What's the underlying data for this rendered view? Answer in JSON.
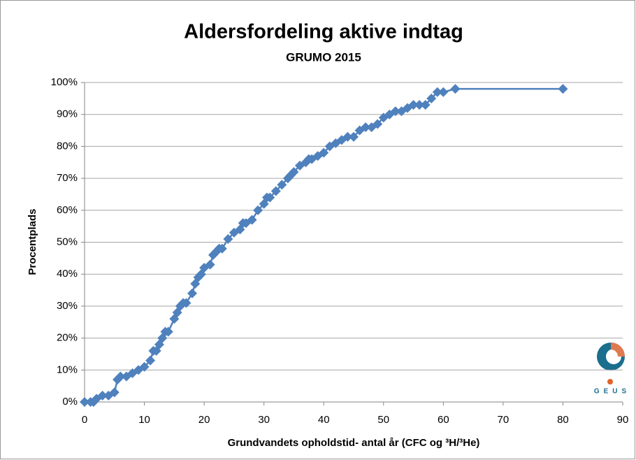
{
  "chart_data": {
    "type": "line",
    "title": "Aldersfordeling aktive indtag",
    "subtitle": "GRUMO 2015",
    "xlabel": "Grundvandets opholdstid- antal år (CFC og ³H/³He)",
    "ylabel": "Procentplads",
    "logo": "GEUS",
    "color": "#4f81bd",
    "marker": "diamond",
    "grid": true,
    "x": [
      0,
      1,
      1.5,
      2,
      3,
      4,
      5,
      5.5,
      6,
      7,
      8,
      9,
      10,
      11,
      11.5,
      12,
      12.5,
      13,
      13.5,
      14,
      15,
      15.5,
      16,
      16.5,
      17,
      18,
      18.5,
      19,
      19.5,
      20,
      21,
      21.5,
      22,
      22.5,
      23,
      24,
      25,
      26,
      26.5,
      27,
      28,
      29,
      30,
      30.5,
      31,
      32,
      33,
      34,
      34.5,
      35,
      36,
      37,
      37.5,
      38,
      39,
      40,
      41,
      42,
      43,
      44,
      45,
      46,
      47,
      48,
      49,
      50,
      51,
      52,
      53,
      54,
      55,
      56,
      57,
      58,
      59,
      60,
      62,
      80
    ],
    "values": [
      0,
      0,
      0,
      1,
      2,
      2,
      3,
      7,
      8,
      8,
      9,
      10,
      11,
      13,
      16,
      16,
      18,
      20,
      22,
      22,
      26,
      28,
      30,
      31,
      31,
      34,
      37,
      39,
      40,
      42,
      43,
      46,
      47,
      48,
      48,
      51,
      53,
      54,
      56,
      56,
      57,
      60,
      62,
      64,
      64,
      66,
      68,
      70,
      71,
      72,
      74,
      75,
      76,
      76,
      77,
      78,
      80,
      81,
      82,
      83,
      83,
      85,
      86,
      86,
      87,
      89,
      90,
      91,
      91,
      92,
      93,
      93,
      93,
      95,
      97,
      97,
      98,
      98
    ],
    "xlim": [
      0,
      90
    ],
    "xticks": [
      0,
      10,
      20,
      30,
      40,
      50,
      60,
      70,
      80,
      90
    ],
    "ylim": [
      0,
      100
    ],
    "yticks": [
      {
        "value": 0,
        "label": "0%"
      },
      {
        "value": 10,
        "label": "10%"
      },
      {
        "value": 20,
        "label": "20%"
      },
      {
        "value": 30,
        "label": "30%"
      },
      {
        "value": 40,
        "label": "40%"
      },
      {
        "value": 50,
        "label": "50%"
      },
      {
        "value": 60,
        "label": "60%"
      },
      {
        "value": 70,
        "label": "70%"
      },
      {
        "value": 80,
        "label": "80%"
      },
      {
        "value": 90,
        "label": "90%"
      },
      {
        "value": 100,
        "label": "100%"
      }
    ]
  }
}
